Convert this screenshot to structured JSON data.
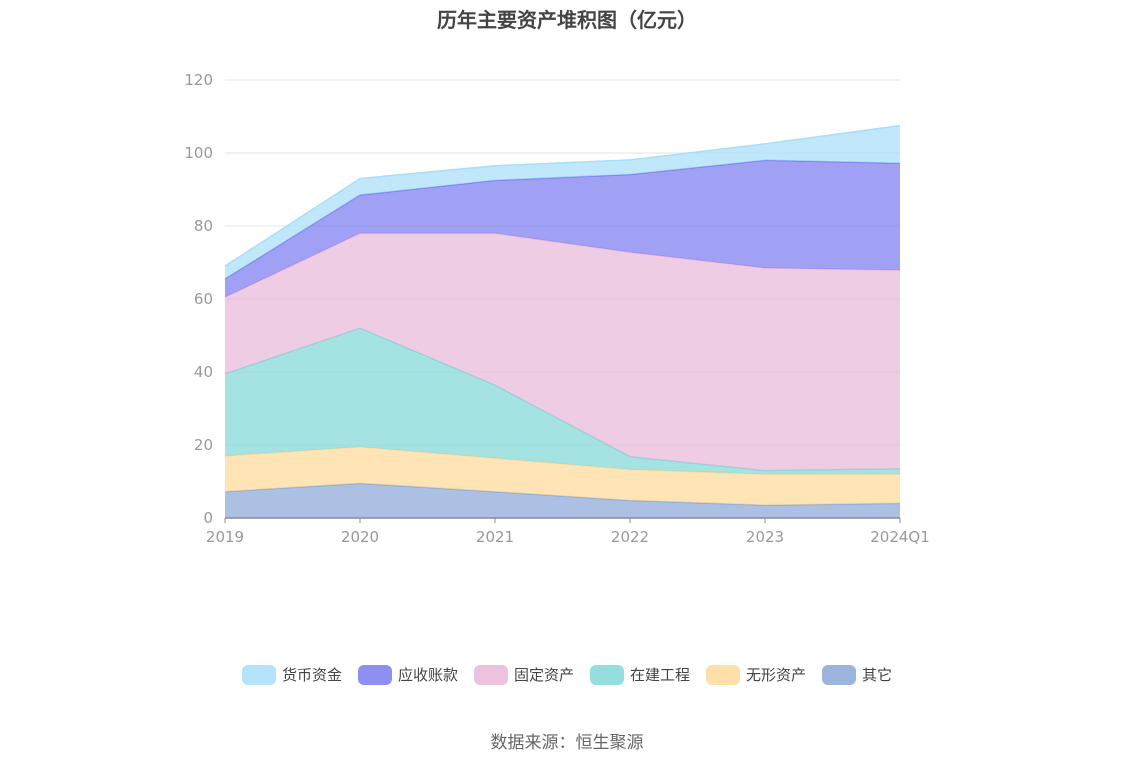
{
  "title": "历年主要资产堆积图（亿元）",
  "source": "数据来源：恒生聚源",
  "chart_data": {
    "type": "area",
    "stacked": true,
    "categories": [
      "2019",
      "2020",
      "2021",
      "2022",
      "2023",
      "2024Q1"
    ],
    "ylim": [
      0,
      120
    ],
    "yticks": [
      0,
      20,
      40,
      60,
      80,
      100,
      120
    ],
    "grid": true,
    "legend_position": "bottom",
    "series": [
      {
        "name": "其它",
        "color": "#8aa8d8",
        "values": [
          7.2,
          9.5,
          7.2,
          4.8,
          3.5,
          4.0
        ]
      },
      {
        "name": "无形资产",
        "color": "#ffd99a",
        "values": [
          9.8,
          10.0,
          9.2,
          8.5,
          8.5,
          8.0
        ]
      },
      {
        "name": "在建工程",
        "color": "#82d8d8",
        "values": [
          22.5,
          32.5,
          20.0,
          3.5,
          1.0,
          1.5
        ]
      },
      {
        "name": "固定资产",
        "color": "#e8b8d8",
        "values": [
          21.0,
          26.0,
          41.6,
          56.0,
          55.5,
          54.4
        ]
      },
      {
        "name": "应收账款",
        "color": "#7b7bf0",
        "values": [
          5.0,
          10.5,
          14.5,
          21.3,
          29.5,
          29.3
        ]
      },
      {
        "name": "货币资金",
        "color": "#a8def8",
        "values": [
          3.5,
          4.5,
          4.0,
          4.0,
          4.5,
          10.3
        ]
      }
    ]
  }
}
